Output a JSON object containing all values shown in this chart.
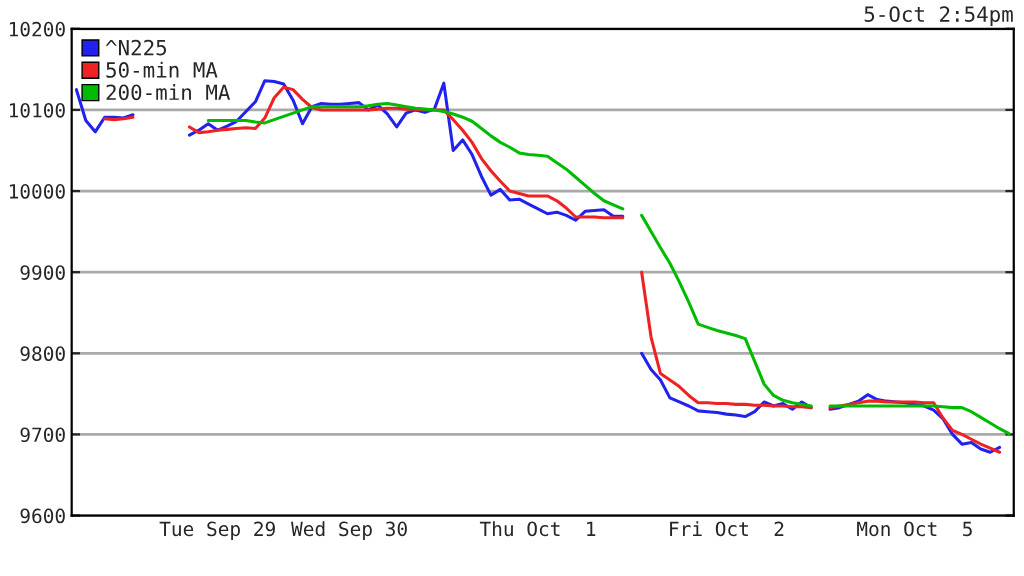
{
  "chart_data": {
    "type": "line",
    "annotations": [
      "5-Oct 2:54pm"
    ],
    "categories": [
      null,
      null,
      null,
      null,
      null,
      null,
      null,
      null,
      null,
      null,
      null,
      null,
      null,
      null,
      null,
      "Tue Sep 29",
      null,
      null,
      null,
      null,
      null,
      null,
      null,
      null,
      null,
      null,
      null,
      null,
      null,
      "Wed Sep 30",
      null,
      null,
      null,
      null,
      null,
      null,
      null,
      null,
      null,
      null,
      null,
      null,
      null,
      null,
      null,
      null,
      null,
      null,
      null,
      "Thu Oct  1",
      null,
      null,
      null,
      null,
      null,
      null,
      null,
      null,
      null,
      null,
      null,
      null,
      null,
      null,
      null,
      null,
      null,
      null,
      null,
      "Fri Oct  2",
      null,
      null,
      null,
      null,
      null,
      null,
      null,
      null,
      null,
      null,
      null,
      null,
      null,
      null,
      null,
      null,
      null,
      null,
      null,
      "Mon Oct  5",
      null,
      null,
      null,
      null,
      null,
      null,
      null,
      null,
      null,
      null
    ],
    "ylim": [
      9600,
      10200
    ],
    "yticks": [
      9600,
      9700,
      9800,
      9900,
      10000,
      10100,
      10200
    ],
    "grid": "y",
    "legend": "top left",
    "marker": "none",
    "line_style": "solid",
    "series": [
      {
        "name": "^N225",
        "color": "#2222ee",
        "values": [
          10125,
          10087,
          10073,
          10091,
          10091,
          10090,
          10094,
          null,
          null,
          null,
          null,
          null,
          10069,
          10075,
          10083,
          10075,
          10080,
          10086,
          10098,
          10110,
          10136,
          10135,
          10132,
          10112,
          10083,
          10104,
          10108,
          10107,
          10107,
          10108,
          10109,
          10100,
          10106,
          10095,
          10079,
          10096,
          10100,
          10097,
          10101,
          10133,
          10050,
          10063,
          10045,
          10018,
          9995,
          10002,
          9989,
          9990,
          9984,
          9978,
          9972,
          9974,
          9970,
          9964,
          9975,
          9976,
          9977,
          9969,
          9969,
          null,
          9800,
          9780,
          9767,
          9745,
          9740,
          9735,
          9729,
          9728,
          9727,
          9725,
          9724,
          9722,
          9728,
          9740,
          9735,
          9738,
          9731,
          9740,
          9733,
          null,
          9731,
          9733,
          9737,
          9741,
          9749,
          9743,
          9741,
          9740,
          9739,
          9737,
          9735,
          9730,
          9719,
          9700,
          9688,
          9690,
          9682,
          9678,
          9684,
          null
        ]
      },
      {
        "name": "50-min MA",
        "color": "#ee2222",
        "values": [
          null,
          null,
          null,
          10089,
          10088,
          10089,
          10091,
          null,
          null,
          null,
          null,
          null,
          10079,
          10072,
          10073,
          10075,
          10076,
          10077,
          10078,
          10077,
          10090,
          10115,
          10128,
          10125,
          10113,
          10103,
          10100,
          10100,
          10100,
          10100,
          10100,
          10100,
          10101,
          10102,
          10102,
          10101,
          10101,
          10100,
          10100,
          10100,
          10088,
          10075,
          10060,
          10040,
          10025,
          10012,
          10000,
          9997,
          9994,
          9994,
          9994,
          9988,
          9979,
          9968,
          9968,
          9968,
          9967,
          9967,
          9967,
          null,
          9900,
          9820,
          9775,
          9767,
          9759,
          9748,
          9739,
          9739,
          9738,
          9738,
          9737,
          9737,
          9736,
          9736,
          9735,
          9735,
          9734,
          9734,
          9733,
          null,
          9733,
          9735,
          9737,
          9739,
          9741,
          9741,
          9740,
          9740,
          9740,
          9740,
          9739,
          9739,
          9720,
          9705,
          9700,
          9694,
          9688,
          9683,
          9678,
          null
        ]
      },
      {
        "name": "200-min MA",
        "color": "#00bb00",
        "values": [
          null,
          null,
          null,
          null,
          null,
          null,
          null,
          null,
          null,
          null,
          null,
          null,
          null,
          null,
          10087,
          10087,
          10087,
          10087,
          10087,
          10085,
          10084,
          10088,
          10092,
          10096,
          10100,
          10104,
          10104,
          10104,
          10104,
          10104,
          10104,
          10105,
          10107,
          10108,
          10106,
          10104,
          10102,
          10101,
          10100,
          10098,
          10095,
          10091,
          10086,
          10077,
          10068,
          10060,
          10054,
          10047,
          10045,
          10044,
          10043,
          10035,
          10027,
          10017,
          10007,
          9997,
          9988,
          9983,
          9978,
          null,
          9970,
          9950,
          9930,
          9911,
          9888,
          9863,
          9836,
          9832,
          9828,
          9825,
          9822,
          9818,
          9790,
          9762,
          9748,
          9742,
          9739,
          9737,
          9735,
          null,
          9735,
          9735,
          9735,
          9735,
          9735,
          9735,
          9735,
          9735,
          9735,
          9735,
          9735,
          9735,
          9734,
          9733,
          9733,
          9728,
          9721,
          9714,
          9707,
          9701
        ]
      }
    ]
  }
}
